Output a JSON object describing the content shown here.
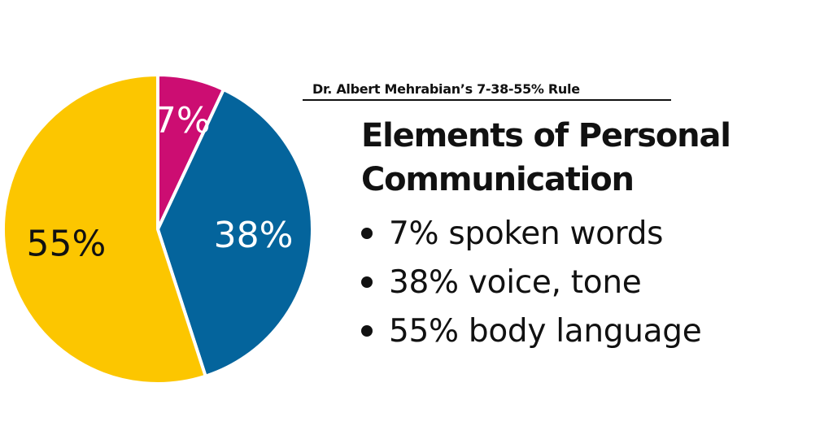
{
  "header": {
    "subtitle": "Dr. Albert Mehrabian’s 7-38-55% Rule",
    "title": "Elements of Personal Communication"
  },
  "bullets": [
    "7% spoken words",
    "38% voice, tone",
    "55% body language"
  ],
  "chart_data": {
    "type": "pie",
    "categories": [
      "spoken words",
      "voice, tone",
      "body language"
    ],
    "values": [
      7,
      38,
      55
    ],
    "labels": [
      "7%",
      "38%",
      "55%"
    ],
    "colors": [
      "#cc0d72",
      "#04649c",
      "#fcc600"
    ],
    "label_colors": [
      "#ffffff",
      "#ffffff",
      "#111111"
    ],
    "start_angle": "12 o'clock",
    "direction": "clockwise",
    "legend": "none"
  }
}
